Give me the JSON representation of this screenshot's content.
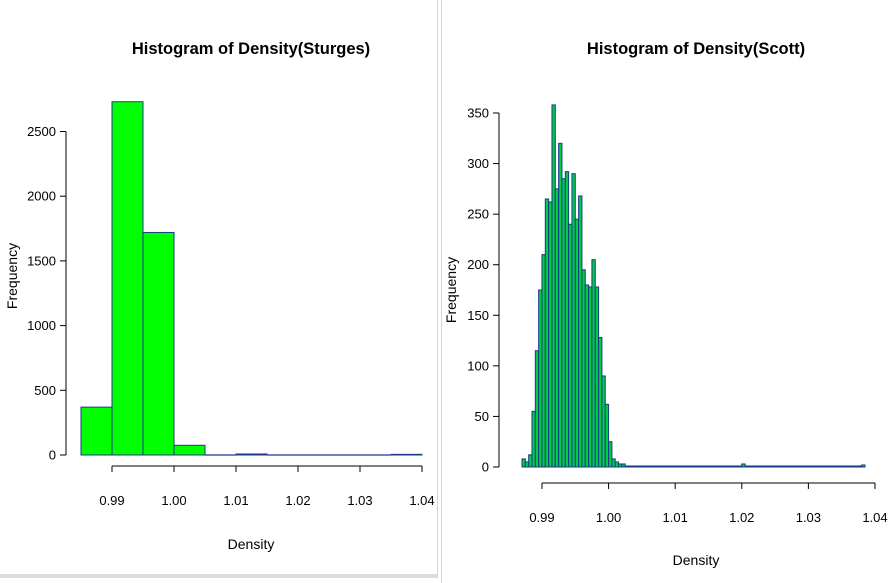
{
  "chart_data": [
    {
      "type": "bar",
      "title": "Histogram of Density(Sturges)",
      "xlabel": "Density",
      "ylabel": "Frequency",
      "bar_fill": "#00ff00",
      "bar_edge": "#1a3a8a",
      "xlim": [
        0.985,
        1.04
      ],
      "ylim": [
        0,
        2700
      ],
      "xticks": [
        0.99,
        1.0,
        1.01,
        1.02,
        1.03,
        1.04
      ],
      "xtick_labels": [
        "0.99",
        "1.00",
        "1.01",
        "1.02",
        "1.03",
        "1.04"
      ],
      "yticks": [
        0,
        500,
        1000,
        1500,
        2000,
        2500
      ],
      "ytick_labels": [
        "0",
        "500",
        "1000",
        "1500",
        "2000",
        "2500"
      ],
      "bin_start": 0.985,
      "bin_width": 0.005,
      "values": [
        370,
        2730,
        1720,
        75,
        0,
        8,
        0,
        0,
        0,
        0,
        5
      ]
    },
    {
      "type": "bar",
      "title": "Histogram of Density(Scott)",
      "xlabel": "Density",
      "ylabel": "Frequency",
      "bar_fill": "#00cc44",
      "bar_edge": "#1a3a8a",
      "xlim": [
        0.987,
        1.039
      ],
      "ylim": [
        0,
        350
      ],
      "xticks": [
        0.99,
        1.0,
        1.01,
        1.02,
        1.03,
        1.04
      ],
      "xtick_labels": [
        "0.99",
        "1.00",
        "1.01",
        "1.02",
        "1.03",
        "1.04"
      ],
      "yticks": [
        0,
        50,
        100,
        150,
        200,
        250,
        300,
        350
      ],
      "ytick_labels": [
        "0",
        "50",
        "100",
        "150",
        "200",
        "250",
        "300",
        "350"
      ],
      "bin_start": 0.987,
      "bin_width": 0.0005,
      "values": [
        8,
        5,
        12,
        55,
        115,
        175,
        210,
        265,
        262,
        358,
        275,
        320,
        285,
        292,
        240,
        290,
        245,
        268,
        195,
        180,
        178,
        205,
        178,
        128,
        90,
        62,
        25,
        8,
        5,
        3,
        3,
        1,
        1,
        1,
        1,
        1,
        1,
        1,
        1,
        1,
        1,
        1,
        1,
        1,
        1,
        1,
        1,
        1,
        1,
        1,
        1,
        1,
        1,
        1,
        1,
        1,
        1,
        1,
        1,
        1,
        1,
        1,
        1,
        1,
        1,
        1,
        3,
        1,
        1,
        1,
        1,
        1,
        1,
        1,
        1,
        1,
        1,
        1,
        1,
        1,
        1,
        1,
        1,
        1,
        1,
        1,
        1,
        1,
        1,
        1,
        1,
        1,
        1,
        1,
        1,
        1,
        1,
        1,
        1,
        1,
        1,
        1,
        2
      ]
    }
  ]
}
